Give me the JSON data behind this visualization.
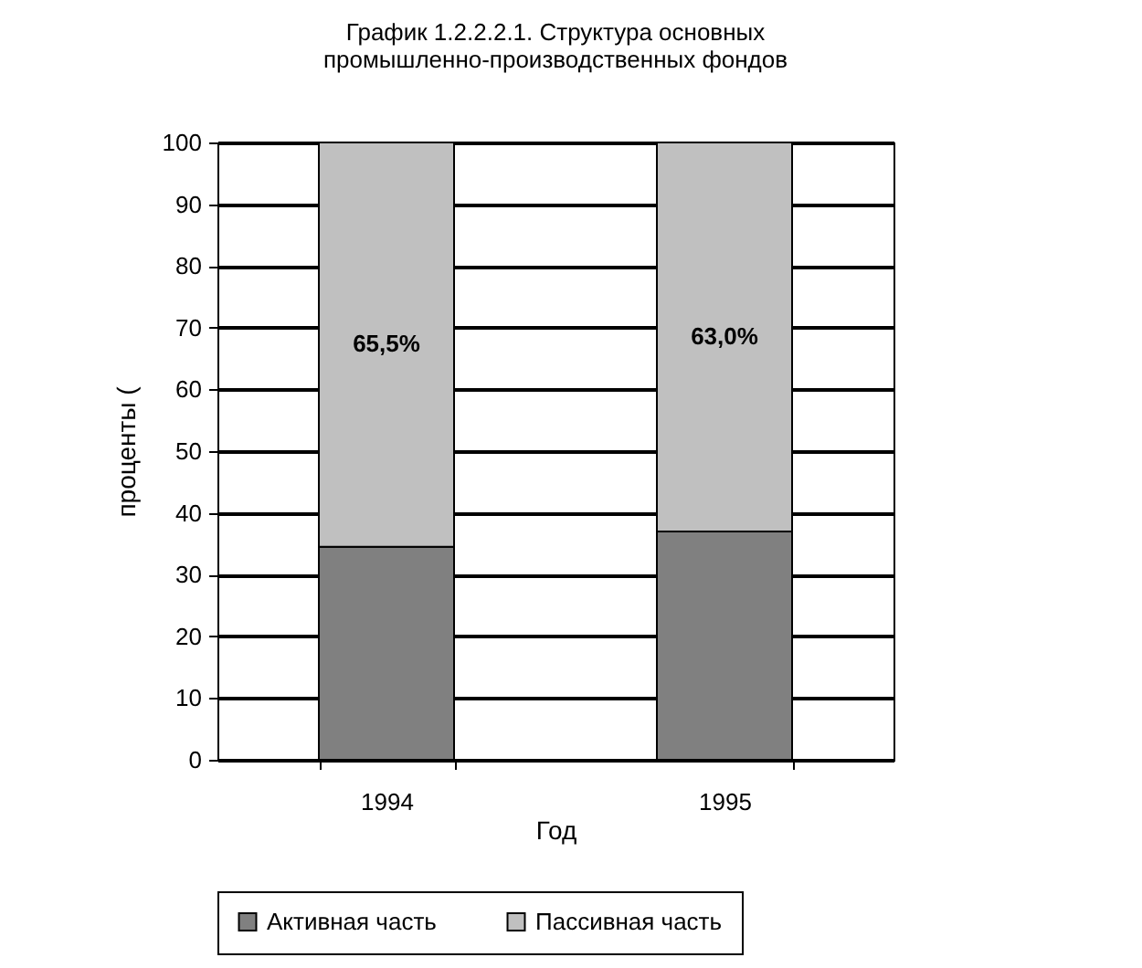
{
  "chart_data": {
    "type": "bar",
    "title": "График 1.2.2.2.1.  Структура основных\nпромышленно-производственных фондов",
    "xlabel": "Год",
    "ylabel": "проценты (",
    "categories": [
      "1994",
      "1995"
    ],
    "stacked": true,
    "series": [
      {
        "name": "Активная часть",
        "color": "#808080",
        "values": [
          34.5,
          37.0
        ]
      },
      {
        "name": "Пассивная часть",
        "color": "#c0c0c0",
        "values": [
          65.5,
          63.0
        ],
        "value_labels": [
          "65,5%",
          "63,0%"
        ]
      }
    ],
    "ylim": [
      0,
      100
    ],
    "yticks": [
      0,
      10,
      20,
      30,
      40,
      50,
      60,
      70,
      80,
      90,
      100
    ],
    "grid": "y",
    "legend": "bottom"
  }
}
